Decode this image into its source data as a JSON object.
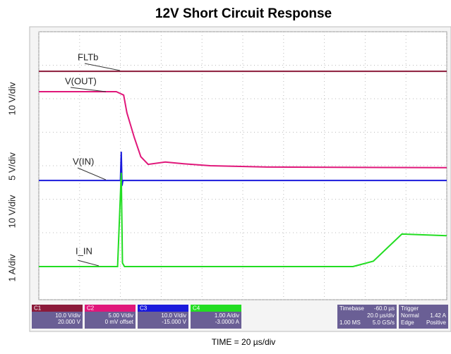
{
  "chart_data": {
    "type": "line",
    "title": "12V Short Circuit Response",
    "x_label": "TIME = 20 µs/div",
    "xlim": [
      0,
      10
    ],
    "ylim": [
      0,
      8
    ],
    "xticks": [
      0,
      1,
      2,
      3,
      4,
      5,
      6,
      7,
      8,
      9,
      10
    ],
    "yticks": [
      0,
      1,
      2,
      3,
      4,
      5,
      6,
      7,
      8
    ],
    "grid": true,
    "scale_labels": [
      "10 V/div",
      "5 V/div",
      "10 V/div",
      "1 A/div"
    ],
    "series": [
      {
        "name": "FLTb",
        "color": "#8b1a3a",
        "x": [
          0,
          10
        ],
        "values": [
          6.82,
          6.82
        ]
      },
      {
        "name": "V(OUT)",
        "color": "#e0177a",
        "x": [
          0,
          1.9,
          2.08,
          2.16,
          2.34,
          2.5,
          2.68,
          3.1,
          3.55,
          4.2,
          5.6,
          10
        ],
        "values": [
          6.21,
          6.21,
          6.11,
          5.58,
          4.84,
          4.27,
          4.04,
          4.11,
          4.06,
          4.0,
          3.96,
          3.94
        ]
      },
      {
        "name": "V(IN)",
        "color": "#1a1adc",
        "x": [
          0,
          2.0,
          2.02,
          2.04,
          2.06,
          10
        ],
        "values": [
          3.56,
          3.56,
          4.42,
          3.4,
          3.56,
          3.56
        ]
      },
      {
        "name": "I_IN",
        "color": "#22dd22",
        "x": [
          0,
          1.93,
          2.02,
          2.05,
          2.1,
          7.7,
          8.2,
          8.9,
          10
        ],
        "values": [
          0.99,
          0.99,
          3.79,
          1.1,
          0.99,
          0.99,
          1.15,
          1.96,
          1.91
        ]
      }
    ],
    "channel_boxes": [
      {
        "label": "C1",
        "lines": [
          "10.0 V/div",
          "20.000 V"
        ]
      },
      {
        "label": "C2",
        "lines": [
          "5.00 V/div",
          "0 mV offset"
        ]
      },
      {
        "label": "C3",
        "lines": [
          "10.0 V/div",
          "-15.000 V"
        ]
      },
      {
        "label": "C4",
        "lines": [
          "1.00 A/div",
          "-3.0000 A"
        ]
      }
    ],
    "timebase": {
      "label": "Timebase",
      "lines": [
        "-60.0 µs",
        "20.0 µs/div",
        "1.00 MS",
        "5.0 GS/s"
      ]
    },
    "trigger": {
      "label": "Trigger",
      "lines": [
        "1.42 A",
        "Normal",
        "Edge",
        "Positive"
      ]
    }
  }
}
